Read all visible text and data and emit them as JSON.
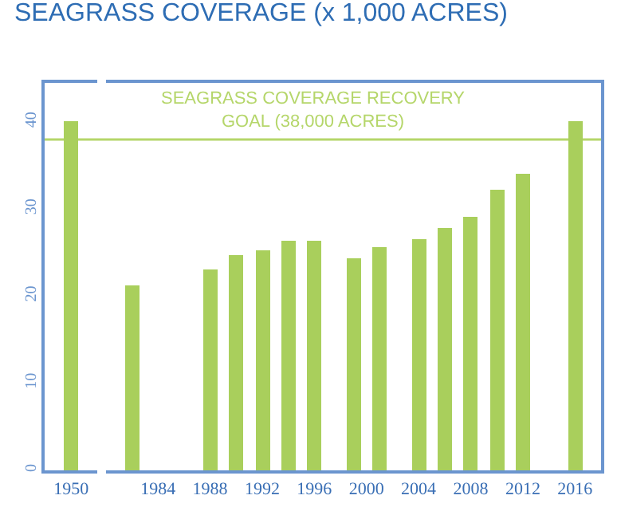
{
  "chart_data": [
    {
      "type": "bar",
      "title": "SEAGRASS COVERAGE (x 1,000 ACRES)",
      "categories": [
        "1950"
      ],
      "values": [
        40.1
      ],
      "color": "#a9cf5c",
      "ylim": [
        0,
        44.5
      ],
      "yticks": [
        0,
        10,
        20,
        30,
        40
      ],
      "grid": false
    },
    {
      "type": "bar",
      "x": [
        1982,
        1988,
        1990,
        1992,
        1994,
        1996,
        1999,
        2001,
        2004,
        2006,
        2008,
        2010,
        2012,
        2016
      ],
      "values": [
        21.3,
        23.0,
        24.8,
        25.2,
        26.3,
        26.3,
        24.4,
        25.6,
        26.5,
        27.8,
        29.1,
        32.2,
        34.1,
        40.1
      ],
      "color": "#a9cf5c",
      "xlim": [
        1980,
        2018
      ],
      "xticks": [
        1984,
        1988,
        1992,
        1996,
        2000,
        2004,
        2008,
        2012,
        2016
      ],
      "ylim": [
        0,
        44.5
      ],
      "yticks": [
        0,
        10,
        20,
        30,
        40
      ],
      "grid": false,
      "tick_labels": "x",
      "ref_lines": [
        {
          "axis": "y",
          "value": 38,
          "color": "#b5d66a",
          "line_style": "solid",
          "label": "SEAGRASS COVERAGE RECOVERY\nGOAL (38,000 ACRES)"
        }
      ]
    }
  ]
}
